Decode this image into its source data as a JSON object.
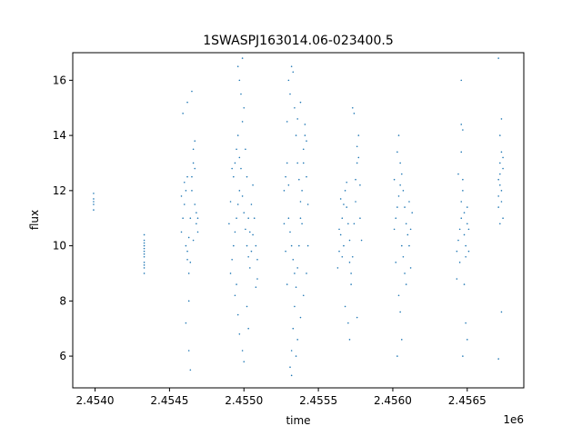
{
  "chart_data": {
    "type": "scatter",
    "title": "1SWASPJ163014.06-023400.5",
    "xlabel": "time",
    "ylabel": "flux",
    "x_offset_label": "1e6",
    "xlim": [
      2.45385,
      2.45688
    ],
    "ylim": [
      4.85,
      17.0
    ],
    "x_ticks": [
      2.454,
      2.4545,
      2.455,
      2.4555,
      2.456,
      2.4565
    ],
    "x_tick_labels": [
      "2.4540",
      "2.4545",
      "2.4550",
      "2.4555",
      "2.4560",
      "2.4565"
    ],
    "y_ticks": [
      6,
      8,
      10,
      12,
      14,
      16
    ],
    "y_tick_labels": [
      "6",
      "8",
      "10",
      "12",
      "14",
      "16"
    ],
    "grid": false,
    "legend": "none",
    "marker_color": "#1f77b4",
    "series": [
      {
        "points": [
          [
            2.45399,
            11.3
          ],
          [
            2.45399,
            11.5
          ],
          [
            2.45399,
            11.7
          ],
          [
            2.45399,
            11.9
          ],
          [
            2.45399,
            11.6
          ],
          [
            2.45433,
            9.0
          ],
          [
            2.45433,
            9.2
          ],
          [
            2.45433,
            9.4
          ],
          [
            2.45433,
            9.6
          ],
          [
            2.45433,
            9.8
          ],
          [
            2.45433,
            10.0
          ],
          [
            2.45433,
            10.2
          ],
          [
            2.45433,
            10.4
          ],
          [
            2.45433,
            9.3
          ],
          [
            2.45433,
            9.7
          ],
          [
            2.45433,
            9.9
          ],
          [
            2.45433,
            10.1
          ],
          [
            2.45458,
            10.5
          ],
          [
            2.45459,
            11.0
          ],
          [
            2.4546,
            11.5
          ],
          [
            2.45461,
            12.0
          ],
          [
            2.45462,
            12.5
          ],
          [
            2.45458,
            11.8
          ],
          [
            2.4546,
            12.3
          ],
          [
            2.45461,
            10.0
          ],
          [
            2.45462,
            9.5
          ],
          [
            2.45463,
            9.0
          ],
          [
            2.45462,
            9.8
          ],
          [
            2.45463,
            10.3
          ],
          [
            2.45464,
            11.0
          ],
          [
            2.45465,
            12.0
          ],
          [
            2.45465,
            12.5
          ],
          [
            2.45466,
            13.0
          ],
          [
            2.45466,
            13.5
          ],
          [
            2.45467,
            13.8
          ],
          [
            2.45467,
            12.8
          ],
          [
            2.45467,
            11.5
          ],
          [
            2.45468,
            10.8
          ],
          [
            2.45468,
            11.2
          ],
          [
            2.45469,
            10.5
          ],
          [
            2.45469,
            11.0
          ],
          [
            2.45466,
            10.2
          ],
          [
            2.45464,
            9.4
          ],
          [
            2.45459,
            14.8
          ],
          [
            2.45461,
            7.2
          ],
          [
            2.45463,
            6.2
          ],
          [
            2.45464,
            5.5
          ],
          [
            2.45465,
            15.6
          ],
          [
            2.45462,
            15.2
          ],
          [
            2.45463,
            8.0
          ],
          [
            2.45491,
            9.0
          ],
          [
            2.45492,
            9.5
          ],
          [
            2.45493,
            10.0
          ],
          [
            2.45494,
            10.5
          ],
          [
            2.45495,
            11.0
          ],
          [
            2.45496,
            11.5
          ],
          [
            2.45497,
            12.0
          ],
          [
            2.45493,
            12.5
          ],
          [
            2.45494,
            13.0
          ],
          [
            2.45495,
            13.5
          ],
          [
            2.45496,
            14.0
          ],
          [
            2.45497,
            13.2
          ],
          [
            2.45498,
            12.8
          ],
          [
            2.45499,
            11.8
          ],
          [
            2.455,
            11.2
          ],
          [
            2.45501,
            10.6
          ],
          [
            2.45502,
            10.0
          ],
          [
            2.45503,
            9.6
          ],
          [
            2.45504,
            9.2
          ],
          [
            2.45505,
            9.8
          ],
          [
            2.45506,
            10.4
          ],
          [
            2.45499,
            14.5
          ],
          [
            2.455,
            15.0
          ],
          [
            2.45498,
            15.5
          ],
          [
            2.45497,
            16.0
          ],
          [
            2.45496,
            16.5
          ],
          [
            2.45499,
            16.8
          ],
          [
            2.45501,
            13.5
          ],
          [
            2.45502,
            12.5
          ],
          [
            2.45503,
            11.0
          ],
          [
            2.45504,
            10.5
          ],
          [
            2.45505,
            11.5
          ],
          [
            2.45506,
            12.2
          ],
          [
            2.45507,
            11.0
          ],
          [
            2.45508,
            10.0
          ],
          [
            2.45508,
            8.5
          ],
          [
            2.45509,
            8.8
          ],
          [
            2.45509,
            9.5
          ],
          [
            2.45496,
            7.5
          ],
          [
            2.45497,
            6.8
          ],
          [
            2.45499,
            6.2
          ],
          [
            2.455,
            5.8
          ],
          [
            2.45502,
            7.8
          ],
          [
            2.45503,
            7.0
          ],
          [
            2.45494,
            8.2
          ],
          [
            2.45495,
            8.6
          ],
          [
            2.45492,
            12.8
          ],
          [
            2.45491,
            11.6
          ],
          [
            2.4549,
            10.8
          ],
          [
            2.45527,
            12.0
          ],
          [
            2.45528,
            12.5
          ],
          [
            2.45529,
            13.0
          ],
          [
            2.4553,
            11.0
          ],
          [
            2.45531,
            10.5
          ],
          [
            2.45532,
            10.0
          ],
          [
            2.45533,
            9.5
          ],
          [
            2.45534,
            9.0
          ],
          [
            2.45535,
            8.5
          ],
          [
            2.45536,
            9.2
          ],
          [
            2.45537,
            10.0
          ],
          [
            2.45538,
            11.0
          ],
          [
            2.45539,
            12.0
          ],
          [
            2.4554,
            13.0
          ],
          [
            2.4554,
            13.5
          ],
          [
            2.45541,
            14.0
          ],
          [
            2.45541,
            14.4
          ],
          [
            2.45542,
            13.8
          ],
          [
            2.45542,
            12.5
          ],
          [
            2.45543,
            11.5
          ],
          [
            2.45529,
            14.5
          ],
          [
            2.45531,
            15.5
          ],
          [
            2.4553,
            16.0
          ],
          [
            2.45532,
            16.5
          ],
          [
            2.45533,
            16.3
          ],
          [
            2.45534,
            15.0
          ],
          [
            2.45535,
            14.0
          ],
          [
            2.45536,
            13.0
          ],
          [
            2.45537,
            12.4
          ],
          [
            2.45538,
            11.6
          ],
          [
            2.45539,
            10.8
          ],
          [
            2.45534,
            7.8
          ],
          [
            2.45533,
            7.0
          ],
          [
            2.45532,
            6.2
          ],
          [
            2.45531,
            5.6
          ],
          [
            2.45532,
            5.3
          ],
          [
            2.45535,
            6.0
          ],
          [
            2.45536,
            6.6
          ],
          [
            2.45538,
            7.4
          ],
          [
            2.4554,
            8.2
          ],
          [
            2.45542,
            9.0
          ],
          [
            2.45543,
            10.0
          ],
          [
            2.45528,
            9.8
          ],
          [
            2.45527,
            10.8
          ],
          [
            2.45529,
            8.6
          ],
          [
            2.4553,
            12.2
          ],
          [
            2.45536,
            14.6
          ],
          [
            2.45538,
            15.2
          ],
          [
            2.45563,
            9.2
          ],
          [
            2.45564,
            9.8
          ],
          [
            2.45565,
            10.4
          ],
          [
            2.45566,
            11.0
          ],
          [
            2.45567,
            11.5
          ],
          [
            2.45568,
            12.0
          ],
          [
            2.45569,
            11.4
          ],
          [
            2.4557,
            10.8
          ],
          [
            2.45571,
            10.2
          ],
          [
            2.45571,
            9.4
          ],
          [
            2.45572,
            9.0
          ],
          [
            2.45572,
            8.6
          ],
          [
            2.45573,
            9.6
          ],
          [
            2.45574,
            10.8
          ],
          [
            2.45575,
            11.6
          ],
          [
            2.45575,
            12.4
          ],
          [
            2.45576,
            13.0
          ],
          [
            2.45576,
            13.6
          ],
          [
            2.45577,
            14.0
          ],
          [
            2.45577,
            13.2
          ],
          [
            2.45578,
            12.2
          ],
          [
            2.45578,
            11.0
          ],
          [
            2.45579,
            10.2
          ],
          [
            2.45569,
            12.3
          ],
          [
            2.45567,
            10.0
          ],
          [
            2.45566,
            9.6
          ],
          [
            2.45565,
            11.7
          ],
          [
            2.45564,
            10.6
          ],
          [
            2.4557,
            7.2
          ],
          [
            2.45571,
            6.6
          ],
          [
            2.45568,
            7.8
          ],
          [
            2.45574,
            14.8
          ],
          [
            2.45573,
            15.0
          ],
          [
            2.45576,
            7.4
          ],
          [
            2.45601,
            10.6
          ],
          [
            2.45602,
            11.0
          ],
          [
            2.45603,
            11.4
          ],
          [
            2.45604,
            11.8
          ],
          [
            2.45605,
            12.2
          ],
          [
            2.45606,
            12.6
          ],
          [
            2.45607,
            12.0
          ],
          [
            2.45608,
            11.4
          ],
          [
            2.45609,
            10.8
          ],
          [
            2.4561,
            10.4
          ],
          [
            2.45611,
            10.0
          ],
          [
            2.45612,
            10.6
          ],
          [
            2.45613,
            11.2
          ],
          [
            2.45603,
            13.4
          ],
          [
            2.45604,
            14.0
          ],
          [
            2.45605,
            13.0
          ],
          [
            2.45606,
            10.0
          ],
          [
            2.45607,
            9.6
          ],
          [
            2.45608,
            9.0
          ],
          [
            2.45609,
            8.6
          ],
          [
            2.45604,
            8.2
          ],
          [
            2.45605,
            7.6
          ],
          [
            2.45606,
            6.6
          ],
          [
            2.45603,
            6.0
          ],
          [
            2.45602,
            9.4
          ],
          [
            2.45601,
            12.4
          ],
          [
            2.45611,
            11.6
          ],
          [
            2.45612,
            9.2
          ],
          [
            2.45643,
            9.8
          ],
          [
            2.45644,
            10.2
          ],
          [
            2.45645,
            10.6
          ],
          [
            2.45646,
            11.0
          ],
          [
            2.45646,
            11.6
          ],
          [
            2.45647,
            12.0
          ],
          [
            2.45647,
            12.4
          ],
          [
            2.45648,
            11.2
          ],
          [
            2.45648,
            10.4
          ],
          [
            2.45649,
            10.0
          ],
          [
            2.45649,
            9.6
          ],
          [
            2.4565,
            10.8
          ],
          [
            2.4565,
            11.4
          ],
          [
            2.45651,
            10.6
          ],
          [
            2.45645,
            9.4
          ],
          [
            2.45644,
            12.6
          ],
          [
            2.45646,
            13.4
          ],
          [
            2.45647,
            14.2
          ],
          [
            2.45646,
            14.4
          ],
          [
            2.45648,
            8.6
          ],
          [
            2.45649,
            7.2
          ],
          [
            2.4565,
            6.6
          ],
          [
            2.45647,
            6.0
          ],
          [
            2.45646,
            16.0
          ],
          [
            2.45643,
            8.8
          ],
          [
            2.45651,
            9.8
          ],
          [
            2.45671,
            11.4
          ],
          [
            2.45671,
            11.8
          ],
          [
            2.45672,
            12.2
          ],
          [
            2.45672,
            12.6
          ],
          [
            2.45672,
            13.0
          ],
          [
            2.45673,
            13.4
          ],
          [
            2.45673,
            12.0
          ],
          [
            2.45673,
            11.6
          ],
          [
            2.45674,
            12.8
          ],
          [
            2.45674,
            13.2
          ],
          [
            2.45671,
            12.4
          ],
          [
            2.45672,
            14.0
          ],
          [
            2.45673,
            14.6
          ],
          [
            2.45671,
            16.8
          ],
          [
            2.45672,
            10.8
          ],
          [
            2.45673,
            7.6
          ],
          [
            2.45671,
            5.9
          ],
          [
            2.45674,
            11.0
          ]
        ]
      }
    ]
  }
}
